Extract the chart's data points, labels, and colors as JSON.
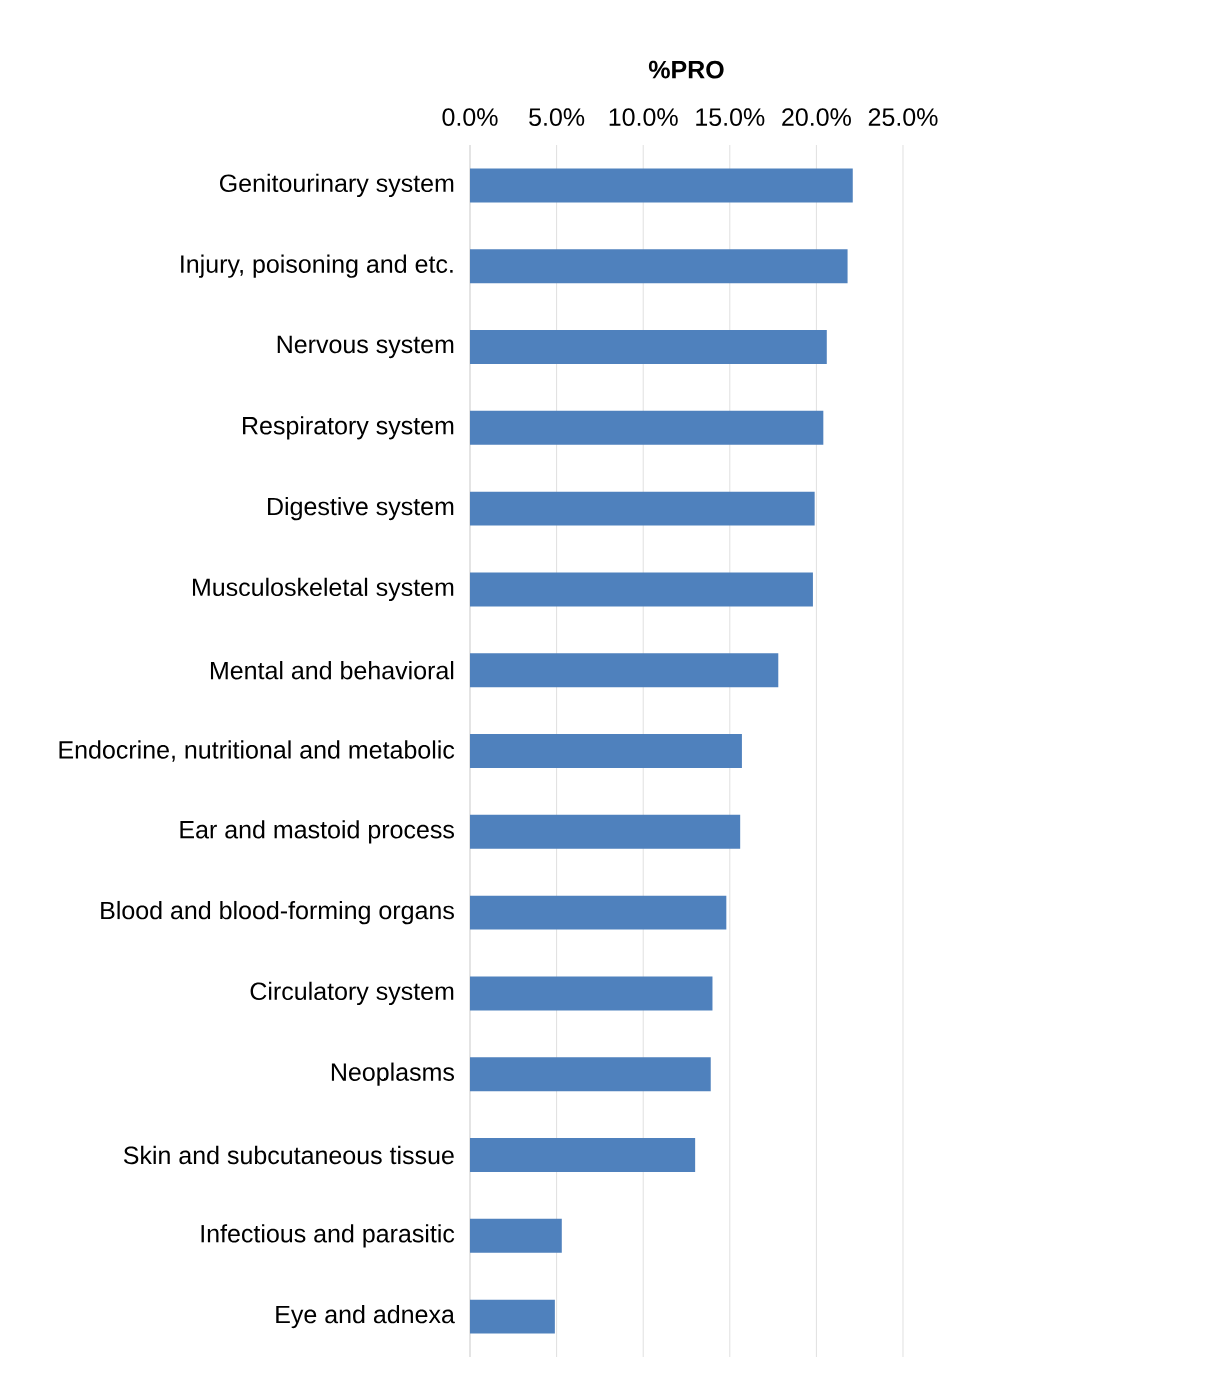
{
  "chart_data": {
    "type": "bar",
    "orientation": "horizontal",
    "xlabel": "%PRO",
    "categories": [
      "Genitourinary system",
      "Injury, poisoning and etc.",
      "Nervous system",
      "Respiratory system",
      "Digestive system",
      "Musculoskeletal system",
      "Mental and behavioral",
      "Endocrine, nutritional and metabolic",
      "Ear and mastoid process",
      "Blood and blood-forming organs",
      "Circulatory system",
      "Neoplasms",
      "Skin and subcutaneous tissue",
      "Infectious and parasitic",
      "Eye and adnexa"
    ],
    "values": [
      22.1,
      21.8,
      20.6,
      20.4,
      19.9,
      19.8,
      17.8,
      15.7,
      15.6,
      14.8,
      14.0,
      13.9,
      13.0,
      5.3,
      4.9
    ],
    "color": "#4f81bd",
    "xlim": [
      0,
      25
    ],
    "xticks": [
      {
        "value": 0,
        "label": "0.0%"
      },
      {
        "value": 5,
        "label": "5.0%"
      },
      {
        "value": 10,
        "label": "10.0%"
      },
      {
        "value": 15,
        "label": "15.0%"
      },
      {
        "value": 20,
        "label": "20.0%"
      },
      {
        "value": 25,
        "label": "25.0%"
      }
    ],
    "grid": "x"
  }
}
